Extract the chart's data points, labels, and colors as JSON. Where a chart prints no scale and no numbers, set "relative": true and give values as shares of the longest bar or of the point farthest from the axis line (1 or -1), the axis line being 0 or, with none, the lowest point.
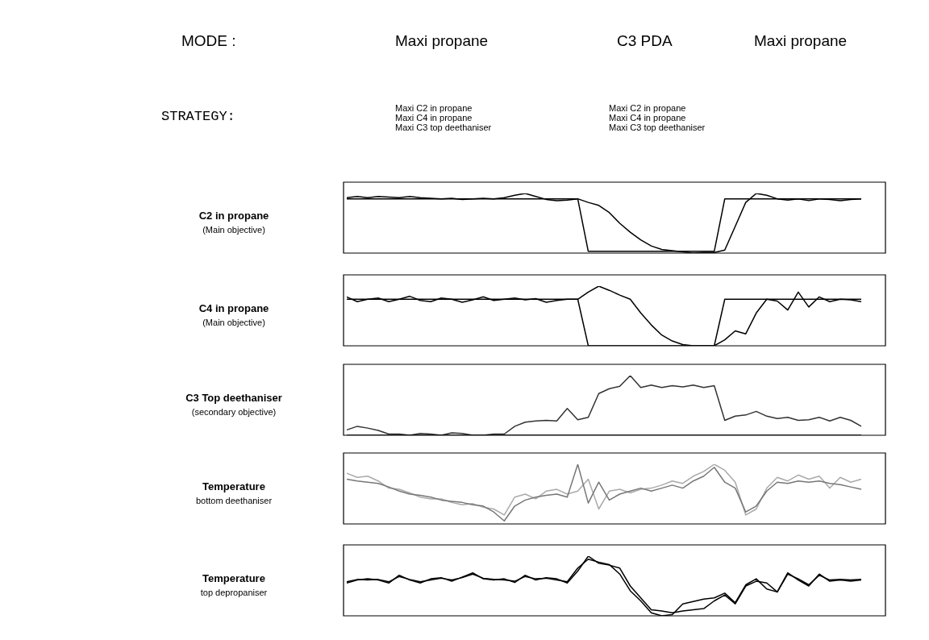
{
  "chart_data": [
    {
      "type": "line",
      "ylabel": "C2 in propane\n(Main objective)",
      "relative": true,
      "annotations": [
        "MODE :",
        "Maxi propane",
        "C3 PDA",
        "Maxi propane",
        "STRATEGY:",
        "Maxi C2 in propane\nMaxi C4 in propane\nMaxi C3 top deethaniser",
        "Maxi C2 in propane\nMaxi C4 in propane\nMaxi C3 top deethaniser"
      ],
      "categories": [
        null,
        null,
        null,
        null,
        null,
        null,
        null,
        null,
        null,
        null,
        null,
        null,
        null,
        null,
        null,
        null,
        null,
        null,
        null,
        null,
        null,
        null,
        null,
        null,
        null,
        null,
        null,
        null,
        null,
        null,
        null,
        null,
        null,
        null,
        null,
        null,
        null,
        null,
        null,
        null,
        null,
        null,
        null,
        null,
        null,
        null,
        null,
        null,
        null,
        null
      ],
      "series": [
        {
          "color": "#000000",
          "values": [
            0.91,
            0.91,
            0.91,
            0.91,
            0.91,
            0.91,
            0.91,
            0.91,
            0.91,
            0.91,
            0.91,
            0.91,
            0.91,
            0.91,
            0.91,
            0.91,
            0.91,
            0.91,
            0.91,
            0.91,
            0.91,
            0.91,
            0.91,
            0.03,
            0.03,
            0.03,
            0.03,
            0.03,
            0.03,
            0.03,
            0.03,
            0.03,
            0.03,
            0.03,
            0.03,
            0.03,
            0.91,
            0.91,
            0.91,
            0.91,
            0.91,
            0.91,
            0.91,
            0.91,
            0.91,
            0.91,
            0.91,
            0.91,
            0.91,
            0.91
          ]
        },
        {
          "color": "#000000",
          "values": [
            0.93,
            0.95,
            0.93,
            0.95,
            0.94,
            0.93,
            0.95,
            0.93,
            0.92,
            0.91,
            0.92,
            0.9,
            0.91,
            0.92,
            0.91,
            0.93,
            0.97,
            1.0,
            0.95,
            0.9,
            0.88,
            0.89,
            0.91,
            0.85,
            0.8,
            0.68,
            0.5,
            0.35,
            0.22,
            0.12,
            0.06,
            0.04,
            0.02,
            0.0,
            0.01,
            0.01,
            0.05,
            0.45,
            0.85,
            1.0,
            0.97,
            0.91,
            0.89,
            0.91,
            0.88,
            0.91,
            0.9,
            0.88,
            0.9,
            0.91
          ]
        }
      ]
    },
    {
      "type": "line",
      "ylabel": "C4 in propane\n(Main objective)",
      "relative": true,
      "categories": [
        null,
        null,
        null,
        null,
        null,
        null,
        null,
        null,
        null,
        null,
        null,
        null,
        null,
        null,
        null,
        null,
        null,
        null,
        null,
        null,
        null,
        null,
        null,
        null,
        null,
        null,
        null,
        null,
        null,
        null,
        null,
        null,
        null,
        null,
        null,
        null,
        null,
        null,
        null,
        null,
        null,
        null,
        null,
        null,
        null,
        null,
        null,
        null,
        null,
        null
      ],
      "series": [
        {
          "color": "#000000",
          "values": [
            0.78,
            0.78,
            0.78,
            0.78,
            0.78,
            0.78,
            0.78,
            0.78,
            0.78,
            0.78,
            0.78,
            0.78,
            0.78,
            0.78,
            0.78,
            0.78,
            0.78,
            0.78,
            0.78,
            0.78,
            0.78,
            0.78,
            0.78,
            0.0,
            0.0,
            0.0,
            0.0,
            0.0,
            0.0,
            0.0,
            0.0,
            0.0,
            0.0,
            0.0,
            0.0,
            0.0,
            0.78,
            0.78,
            0.78,
            0.78,
            0.78,
            0.78,
            0.78,
            0.78,
            0.78,
            0.78,
            0.78,
            0.78,
            0.78,
            0.78
          ]
        },
        {
          "color": "#000000",
          "values": [
            0.82,
            0.74,
            0.78,
            0.8,
            0.74,
            0.78,
            0.83,
            0.76,
            0.74,
            0.8,
            0.78,
            0.73,
            0.77,
            0.82,
            0.76,
            0.78,
            0.8,
            0.77,
            0.79,
            0.73,
            0.76,
            0.78,
            0.78,
            0.9,
            1.0,
            0.93,
            0.85,
            0.78,
            0.55,
            0.35,
            0.18,
            0.08,
            0.02,
            0.0,
            0.0,
            0.0,
            0.1,
            0.25,
            0.2,
            0.55,
            0.78,
            0.75,
            0.6,
            0.9,
            0.65,
            0.82,
            0.74,
            0.78,
            0.77,
            0.74
          ]
        }
      ]
    },
    {
      "type": "line",
      "ylabel": "C3 Top deethaniser\n(secondary objective)",
      "relative": true,
      "categories": [
        null,
        null,
        null,
        null,
        null,
        null,
        null,
        null,
        null,
        null,
        null,
        null,
        null,
        null,
        null,
        null,
        null,
        null,
        null,
        null,
        null,
        null,
        null,
        null,
        null,
        null,
        null,
        null,
        null,
        null,
        null,
        null,
        null,
        null,
        null,
        null,
        null,
        null,
        null,
        null,
        null,
        null,
        null,
        null,
        null,
        null,
        null,
        null,
        null,
        null
      ],
      "series": [
        {
          "color": "#000000",
          "values": [
            0.0,
            0.0,
            0.0,
            0.0,
            0.0,
            0.0,
            0.0,
            0.0,
            0.0,
            0.0,
            0.0,
            0.0,
            0.0,
            0.0,
            0.0,
            0.0,
            0.0,
            0.0,
            0.0,
            0.0,
            0.0,
            0.0,
            0.0,
            0.0,
            0.0,
            0.0,
            0.0,
            0.0,
            0.0,
            0.0,
            0.0,
            0.0,
            0.0,
            0.0,
            0.0,
            0.0,
            0.0,
            0.0,
            0.0,
            0.0,
            0.0,
            0.0,
            0.0,
            0.0,
            0.0,
            0.0,
            0.0,
            0.0,
            0.0,
            0.0
          ]
        },
        {
          "color": "#333333",
          "values": [
            0.09,
            0.15,
            0.12,
            0.08,
            0.02,
            0.02,
            0.0,
            0.03,
            0.02,
            0.0,
            0.04,
            0.03,
            0.0,
            0.0,
            0.02,
            0.02,
            0.15,
            0.22,
            0.24,
            0.25,
            0.24,
            0.45,
            0.26,
            0.3,
            0.7,
            0.78,
            0.82,
            1.0,
            0.8,
            0.84,
            0.8,
            0.83,
            0.81,
            0.84,
            0.8,
            0.83,
            0.25,
            0.32,
            0.34,
            0.4,
            0.32,
            0.28,
            0.3,
            0.25,
            0.26,
            0.3,
            0.24,
            0.3,
            0.25,
            0.15
          ]
        }
      ]
    },
    {
      "type": "line",
      "ylabel": "Temperature\nbottom deethaniser",
      "relative": true,
      "categories": [
        null,
        null,
        null,
        null,
        null,
        null,
        null,
        null,
        null,
        null,
        null,
        null,
        null,
        null,
        null,
        null,
        null,
        null,
        null,
        null,
        null,
        null,
        null,
        null,
        null,
        null,
        null,
        null,
        null,
        null,
        null,
        null,
        null,
        null,
        null,
        null,
        null,
        null,
        null,
        null,
        null,
        null,
        null,
        null,
        null,
        null,
        null,
        null,
        null,
        null
      ],
      "series": [
        {
          "color": "#777777",
          "values": [
            0.75,
            0.72,
            0.7,
            0.68,
            0.62,
            0.55,
            0.5,
            0.48,
            0.45,
            0.4,
            0.38,
            0.36,
            0.32,
            0.3,
            0.2,
            0.05,
            0.3,
            0.4,
            0.45,
            0.48,
            0.5,
            0.45,
            1.0,
            0.35,
            0.7,
            0.4,
            0.5,
            0.55,
            0.6,
            0.55,
            0.6,
            0.65,
            0.6,
            0.72,
            0.8,
            0.95,
            0.7,
            0.6,
            0.2,
            0.3,
            0.55,
            0.7,
            0.68,
            0.72,
            0.7,
            0.72,
            0.68,
            0.66,
            0.62,
            0.58
          ]
        },
        {
          "color": "#aaaaaa",
          "values": [
            0.85,
            0.78,
            0.8,
            0.72,
            0.6,
            0.58,
            0.52,
            0.45,
            0.42,
            0.42,
            0.36,
            0.32,
            0.34,
            0.28,
            0.25,
            0.15,
            0.45,
            0.5,
            0.42,
            0.55,
            0.58,
            0.5,
            0.55,
            0.75,
            0.25,
            0.55,
            0.58,
            0.52,
            0.58,
            0.6,
            0.65,
            0.72,
            0.68,
            0.8,
            0.88,
            1.0,
            0.9,
            0.7,
            0.15,
            0.25,
            0.6,
            0.78,
            0.72,
            0.82,
            0.75,
            0.8,
            0.6,
            0.78,
            0.7,
            0.75
          ]
        }
      ]
    },
    {
      "type": "line",
      "ylabel": "Temperature\ntop depropaniser",
      "relative": true,
      "categories": [
        null,
        null,
        null,
        null,
        null,
        null,
        null,
        null,
        null,
        null,
        null,
        null,
        null,
        null,
        null,
        null,
        null,
        null,
        null,
        null,
        null,
        null,
        null,
        null,
        null,
        null,
        null,
        null,
        null,
        null,
        null,
        null,
        null,
        null,
        null,
        null,
        null,
        null,
        null,
        null,
        null,
        null,
        null,
        null,
        null,
        null,
        null,
        null,
        null,
        null
      ],
      "series": [
        {
          "color": "#000000",
          "values": [
            0.55,
            0.6,
            0.62,
            0.6,
            0.55,
            0.68,
            0.6,
            0.55,
            0.62,
            0.64,
            0.58,
            0.65,
            0.72,
            0.62,
            0.6,
            0.62,
            0.56,
            0.68,
            0.6,
            0.64,
            0.62,
            0.55,
            0.75,
            1.0,
            0.88,
            0.85,
            0.8,
            0.5,
            0.3,
            0.1,
            0.08,
            0.05,
            0.08,
            0.1,
            0.12,
            0.25,
            0.35,
            0.2,
            0.5,
            0.58,
            0.55,
            0.4,
            0.72,
            0.6,
            0.5,
            0.7,
            0.58,
            0.6,
            0.58,
            0.6
          ]
        },
        {
          "color": "#000000",
          "values": [
            0.57,
            0.61,
            0.6,
            0.61,
            0.57,
            0.66,
            0.61,
            0.57,
            0.6,
            0.63,
            0.6,
            0.64,
            0.7,
            0.63,
            0.61,
            0.6,
            0.58,
            0.66,
            0.62,
            0.63,
            0.6,
            0.57,
            0.8,
            0.95,
            0.9,
            0.86,
            0.7,
            0.42,
            0.25,
            0.05,
            0.0,
            0.02,
            0.2,
            0.24,
            0.28,
            0.3,
            0.38,
            0.22,
            0.52,
            0.62,
            0.45,
            0.4,
            0.7,
            0.62,
            0.52,
            0.68,
            0.6,
            0.61,
            0.6,
            0.61
          ]
        }
      ]
    }
  ]
}
